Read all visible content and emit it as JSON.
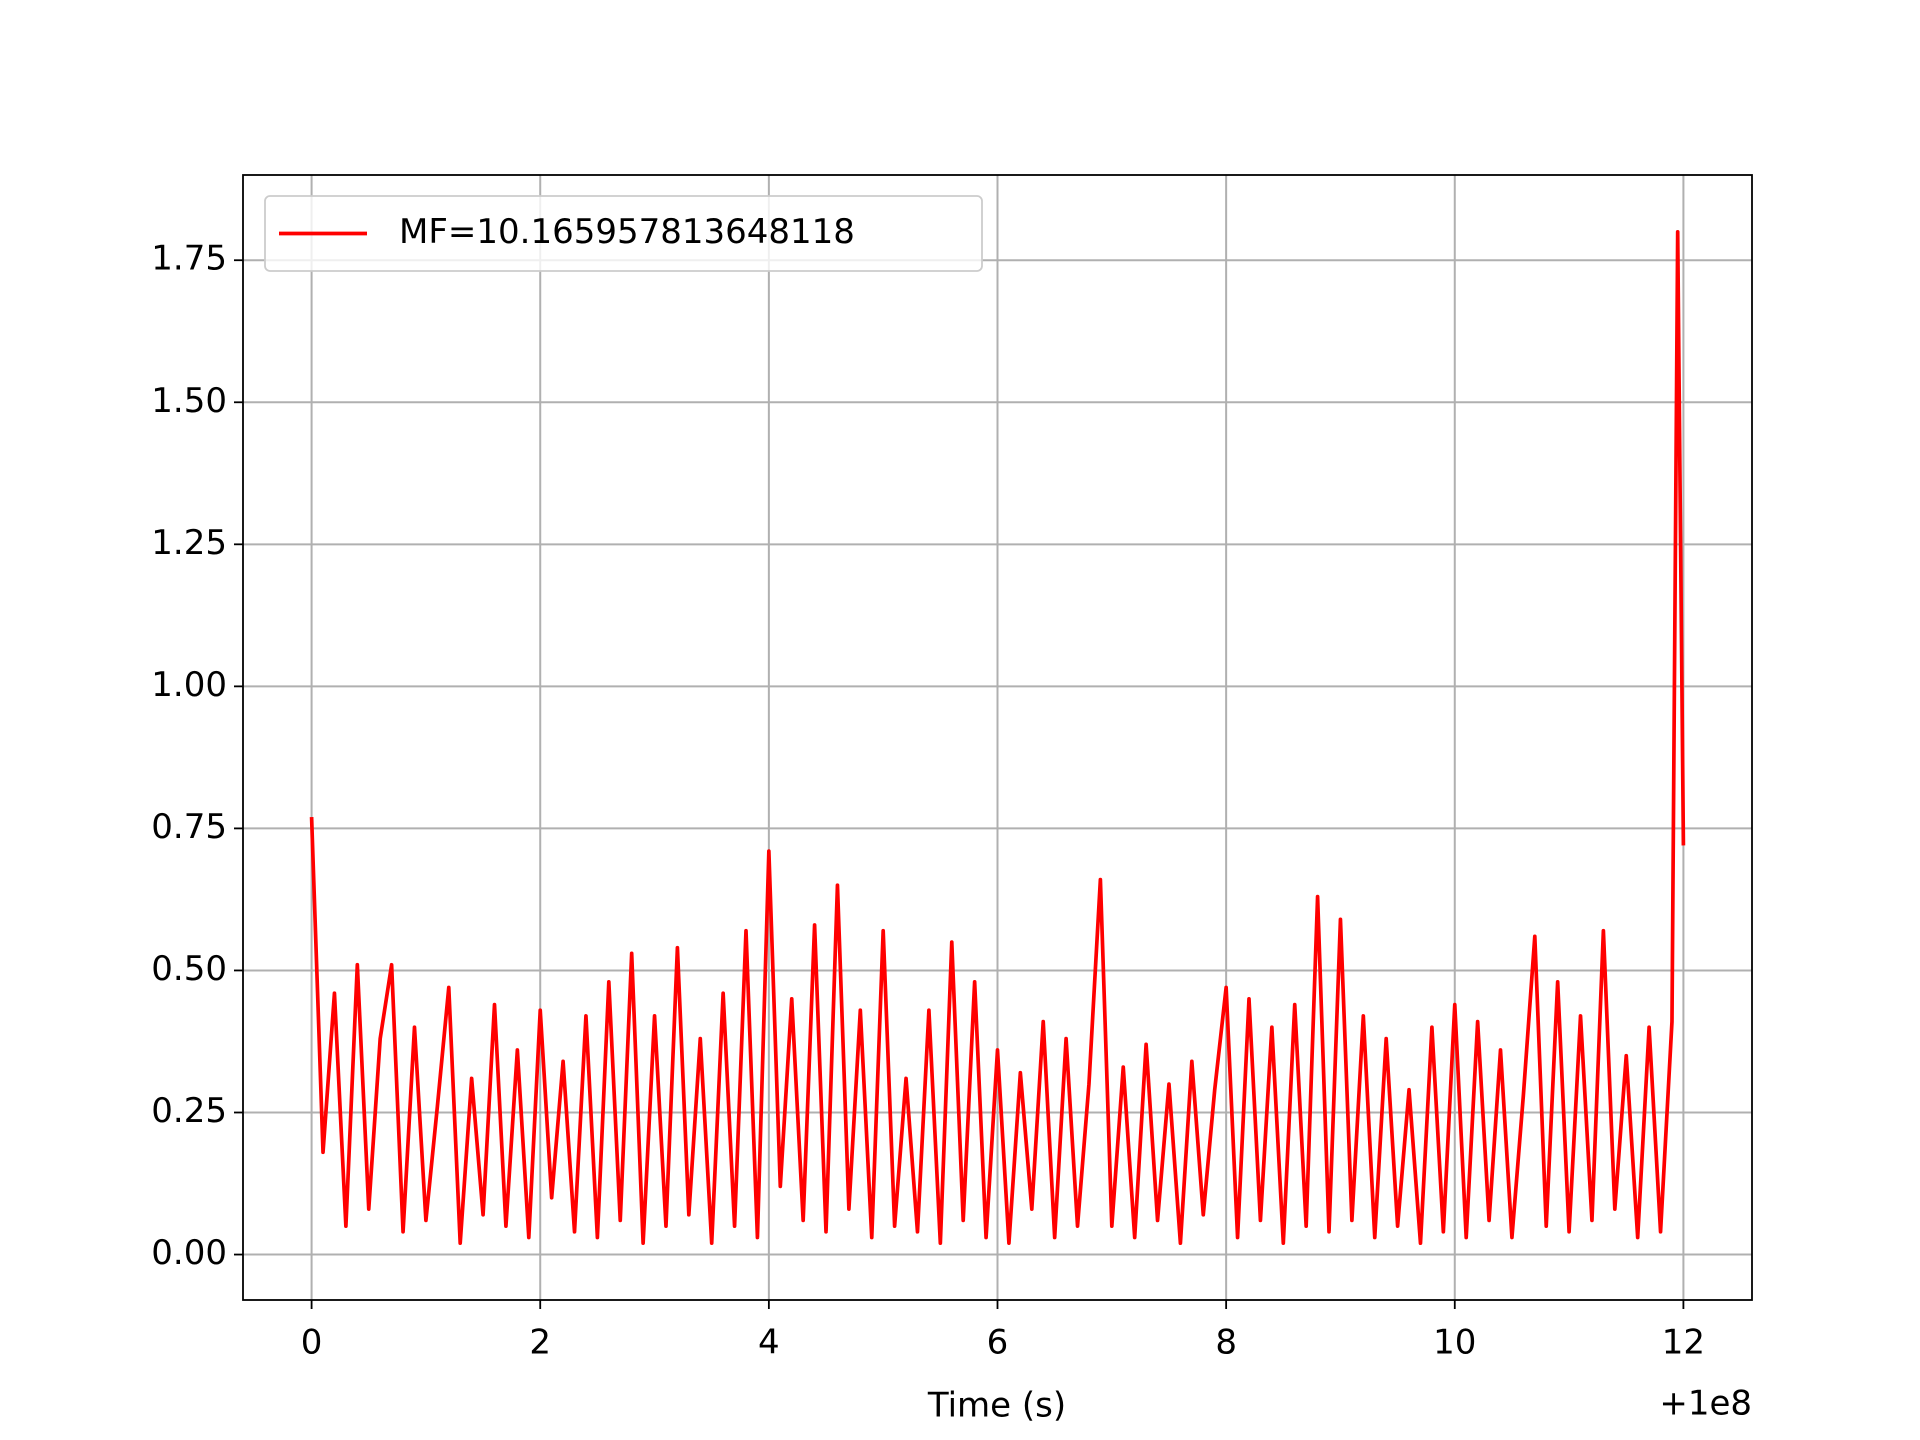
{
  "chart_data": {
    "type": "line",
    "xlabel": "Time (s)",
    "x_offset_label": "+1e8",
    "x": [
      0,
      0.1,
      0.2,
      0.3,
      0.4,
      0.5,
      0.6,
      0.7,
      0.8,
      0.9,
      1.0,
      1.1,
      1.2,
      1.3,
      1.4,
      1.5,
      1.6,
      1.7,
      1.8,
      1.9,
      2.0,
      2.1,
      2.2,
      2.3,
      2.4,
      2.5,
      2.6,
      2.7,
      2.8,
      2.9,
      3.0,
      3.1,
      3.2,
      3.3,
      3.4,
      3.5,
      3.6,
      3.7,
      3.8,
      3.9,
      4.0,
      4.1,
      4.2,
      4.3,
      4.4,
      4.5,
      4.6,
      4.7,
      4.8,
      4.9,
      5.0,
      5.1,
      5.2,
      5.3,
      5.4,
      5.5,
      5.6,
      5.7,
      5.8,
      5.9,
      6.0,
      6.1,
      6.2,
      6.3,
      6.4,
      6.5,
      6.6,
      6.7,
      6.8,
      6.9,
      7.0,
      7.1,
      7.2,
      7.3,
      7.4,
      7.5,
      7.6,
      7.7,
      7.8,
      7.9,
      8.0,
      8.1,
      8.2,
      8.3,
      8.4,
      8.5,
      8.6,
      8.7,
      8.8,
      8.9,
      9.0,
      9.1,
      9.2,
      9.3,
      9.4,
      9.5,
      9.6,
      9.7,
      9.8,
      9.9,
      10.0,
      10.1,
      10.2,
      10.3,
      10.4,
      10.5,
      10.6,
      10.7,
      10.8,
      10.9,
      11.0,
      11.1,
      11.2,
      11.3,
      11.4,
      11.5,
      11.6,
      11.7,
      11.8,
      11.9,
      11.95,
      12.0
    ],
    "series": [
      {
        "name": "MF=10.165957813648118",
        "color": "#ff0000",
        "values": [
          0.77,
          0.18,
          0.46,
          0.05,
          0.51,
          0.08,
          0.38,
          0.51,
          0.04,
          0.4,
          0.06,
          0.26,
          0.47,
          0.02,
          0.31,
          0.07,
          0.44,
          0.05,
          0.36,
          0.03,
          0.43,
          0.1,
          0.34,
          0.04,
          0.42,
          0.03,
          0.48,
          0.06,
          0.53,
          0.02,
          0.42,
          0.05,
          0.54,
          0.07,
          0.38,
          0.02,
          0.46,
          0.05,
          0.57,
          0.03,
          0.71,
          0.12,
          0.45,
          0.06,
          0.58,
          0.04,
          0.65,
          0.08,
          0.43,
          0.03,
          0.57,
          0.05,
          0.31,
          0.04,
          0.43,
          0.02,
          0.55,
          0.06,
          0.48,
          0.03,
          0.36,
          0.02,
          0.32,
          0.08,
          0.41,
          0.03,
          0.38,
          0.05,
          0.3,
          0.66,
          0.05,
          0.33,
          0.03,
          0.37,
          0.06,
          0.3,
          0.02,
          0.34,
          0.07,
          0.29,
          0.47,
          0.03,
          0.45,
          0.06,
          0.4,
          0.02,
          0.44,
          0.05,
          0.63,
          0.04,
          0.59,
          0.06,
          0.42,
          0.03,
          0.38,
          0.05,
          0.29,
          0.02,
          0.4,
          0.04,
          0.44,
          0.03,
          0.41,
          0.06,
          0.36,
          0.03,
          0.28,
          0.56,
          0.05,
          0.48,
          0.04,
          0.42,
          0.06,
          0.57,
          0.08,
          0.35,
          0.03,
          0.4,
          0.04,
          0.41,
          1.8,
          0.72
        ]
      }
    ],
    "xlim": [
      -0.6,
      12.6
    ],
    "xticks": [
      0,
      2,
      4,
      6,
      8,
      10,
      12
    ],
    "ylim": [
      -0.08,
      1.9
    ],
    "yticks": [
      {
        "value": 0,
        "label": "0.00"
      },
      {
        "value": 0.25,
        "label": "0.25"
      },
      {
        "value": 0.5,
        "label": "0.50"
      },
      {
        "value": 0.75,
        "label": "0.75"
      },
      {
        "value": 1,
        "label": "1.00"
      },
      {
        "value": 1.25,
        "label": "1.25"
      },
      {
        "value": 1.5,
        "label": "1.50"
      },
      {
        "value": 1.75,
        "label": "1.75"
      }
    ],
    "grid": true,
    "legend": "upper-left"
  }
}
